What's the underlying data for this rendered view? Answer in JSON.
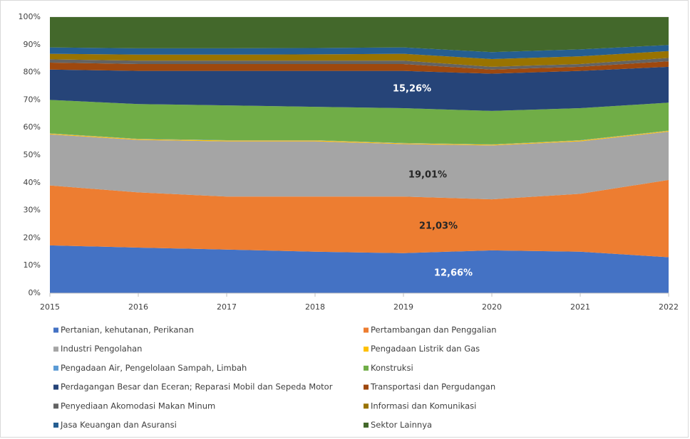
{
  "chart_data": {
    "type": "stacked_area",
    "categories": [
      "2015",
      "2016",
      "2017",
      "2018",
      "2019",
      "2020",
      "2021",
      "2022"
    ],
    "ylim": [
      0,
      100
    ],
    "yticks": [
      {
        "value": 0,
        "label": "0%"
      },
      {
        "value": 10,
        "label": "10%"
      },
      {
        "value": 20,
        "label": "20%"
      },
      {
        "value": 30,
        "label": "30%"
      },
      {
        "value": 40,
        "label": "40%"
      },
      {
        "value": 50,
        "label": "50%"
      },
      {
        "value": 60,
        "label": "60%"
      },
      {
        "value": 70,
        "label": "70%"
      },
      {
        "value": 80,
        "label": "80%"
      },
      {
        "value": 90,
        "label": "90%"
      },
      {
        "value": 100,
        "label": "100%"
      }
    ],
    "grid": true,
    "series": [
      {
        "name": "Pertanian, kehutanan, Perikanan",
        "color": "#4472c4",
        "values": [
          17.3,
          16.5,
          15.8,
          15.0,
          14.5,
          15.5,
          15.0,
          13.0
        ]
      },
      {
        "name": "Pertambangan dan Penggalian",
        "color": "#ed7d31",
        "values": [
          21.7,
          20.0,
          19.2,
          20.0,
          20.5,
          18.5,
          21.0,
          28.0
        ]
      },
      {
        "name": "Industri Pengolahan",
        "color": "#a5a5a5",
        "values": [
          18.5,
          19.0,
          20.0,
          20.0,
          19.0,
          19.5,
          19.0,
          17.5
        ]
      },
      {
        "name": "Pengadaan Listrik dan Gas",
        "color": "#ffc000",
        "values": [
          0.3,
          0.3,
          0.3,
          0.3,
          0.3,
          0.3,
          0.3,
          0.3
        ]
      },
      {
        "name": "Pengadaan Air, Pengelolaan Sampah, Limbah",
        "color": "#5b9bd5",
        "values": [
          0.1,
          0.1,
          0.1,
          0.1,
          0.1,
          0.1,
          0.1,
          0.1
        ]
      },
      {
        "name": "Konstruksi",
        "color": "#70ad47",
        "values": [
          12.1,
          12.6,
          12.6,
          12.1,
          12.6,
          12.1,
          11.6,
          10.1
        ]
      },
      {
        "name": "Perdagangan Besar dan Eceran; Reparasi Mobil dan Sepeda Motor",
        "color": "#264478",
        "values": [
          11.0,
          12.0,
          12.5,
          13.0,
          13.5,
          13.5,
          13.5,
          13.0
        ]
      },
      {
        "name": "Transportasi dan Pergudangan",
        "color": "#9e480e",
        "values": [
          2.5,
          2.5,
          2.5,
          2.5,
          2.5,
          1.5,
          1.5,
          2.0
        ]
      },
      {
        "name": "Penyediaan Akomodasi Makan Minum",
        "color": "#636363",
        "values": [
          1.2,
          1.2,
          1.2,
          1.2,
          1.2,
          1.0,
          1.0,
          1.2
        ]
      },
      {
        "name": "Informasi dan Komunikasi",
        "color": "#997300",
        "values": [
          2.0,
          2.2,
          2.2,
          2.3,
          2.5,
          2.8,
          2.8,
          2.5
        ]
      },
      {
        "name": "Jasa Keuangan dan Asuransi",
        "color": "#255e91",
        "values": [
          2.3,
          2.3,
          2.3,
          2.3,
          2.3,
          2.5,
          2.5,
          2.2
        ]
      },
      {
        "name": "Sektor Lainnya",
        "color": "#43682b",
        "values": [
          11.0,
          11.3,
          11.3,
          11.2,
          11.0,
          12.7,
          11.7,
          10.1
        ]
      }
    ],
    "annotations": [
      "15,26%",
      "19,01%",
      "21,03%",
      "12,66%"
    ]
  }
}
